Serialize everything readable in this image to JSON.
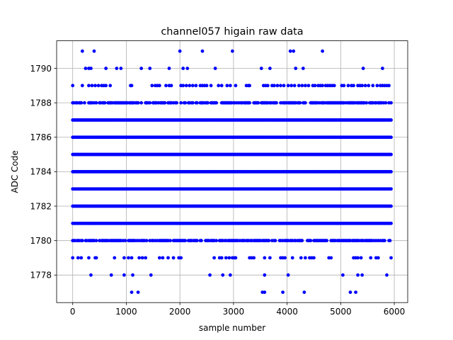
{
  "chart_data": {
    "type": "scatter",
    "title": "channel057 higain raw data",
    "xlabel": "sample number",
    "ylabel": "ADC Code",
    "xlim": [
      -300,
      6250
    ],
    "ylim": [
      1776.4,
      1791.6
    ],
    "xticks": [
      0,
      1000,
      2000,
      3000,
      4000,
      5000,
      6000
    ],
    "yticks": [
      1778,
      1780,
      1782,
      1784,
      1786,
      1788,
      1790
    ],
    "xtick_labels": [
      "0",
      "1000",
      "2000",
      "3000",
      "4000",
      "5000",
      "6000"
    ],
    "ytick_labels": [
      "1778",
      "1780",
      "1782",
      "1784",
      "1786",
      "1788",
      "1790"
    ],
    "grid": true,
    "marker_color": "#0000ff",
    "sample_range": [
      0,
      5940
    ],
    "dense_levels": [
      1781,
      1782,
      1783,
      1784,
      1785,
      1786,
      1787
    ],
    "medium_levels": [
      1780,
      1788
    ],
    "sparse_levels": {
      "1791": [
        180,
        400,
        2000,
        2420,
        2980,
        4060,
        4120,
        4660
      ],
      "1790": [
        240,
        300,
        340,
        620,
        820,
        900,
        1280,
        1440,
        1800,
        2060,
        2140,
        2660,
        3520,
        3680,
        4160,
        4300,
        5420,
        5780
      ],
      "1789": [
        0,
        180,
        300,
        360,
        420,
        480,
        540,
        580,
        620,
        700,
        1080,
        1100,
        1480,
        1540,
        1580,
        1620,
        1740,
        1800,
        1840,
        2020,
        2060,
        2120,
        2180,
        2240,
        2300,
        2380,
        2420,
        2460,
        2500,
        2580,
        2720,
        2780,
        2880,
        2940,
        3040,
        3240,
        3280,
        3300,
        3560,
        3600,
        3640,
        3720,
        3760,
        3820,
        3880,
        3940,
        4020,
        4080,
        4140,
        4220,
        4280,
        4340,
        4400,
        4480,
        4520,
        4580,
        4620,
        4660,
        4720,
        4760,
        4800,
        4840,
        4880,
        5020,
        5060,
        5140,
        5200,
        5240,
        5320,
        5360,
        5400,
        5460,
        5520,
        5600,
        5680,
        5740,
        5780,
        5820,
        5860,
        5900
      ],
      "1779": [
        0,
        100,
        160,
        300,
        420,
        440,
        780,
        960,
        1040,
        1100,
        1240,
        1300,
        1360,
        1620,
        1680,
        1780,
        1880,
        1980,
        2020,
        2640,
        2740,
        2780,
        2860,
        2920,
        2980,
        3020,
        3040,
        3300,
        3340,
        3380,
        3580,
        3680,
        3880,
        3920,
        3960,
        4100,
        4260,
        4340,
        4420,
        4460,
        4500,
        4780,
        4820,
        5240,
        5280,
        5320,
        5380,
        5560,
        5660,
        5700,
        5940
      ],
      "1778": [
        340,
        720,
        960,
        1120,
        1460,
        2560,
        2800,
        2940,
        3580,
        4020,
        5040,
        5320,
        5400,
        5860
      ],
      "1777": [
        1100,
        1220,
        3540,
        3580,
        3920,
        4320,
        5180,
        5280
      ]
    }
  }
}
